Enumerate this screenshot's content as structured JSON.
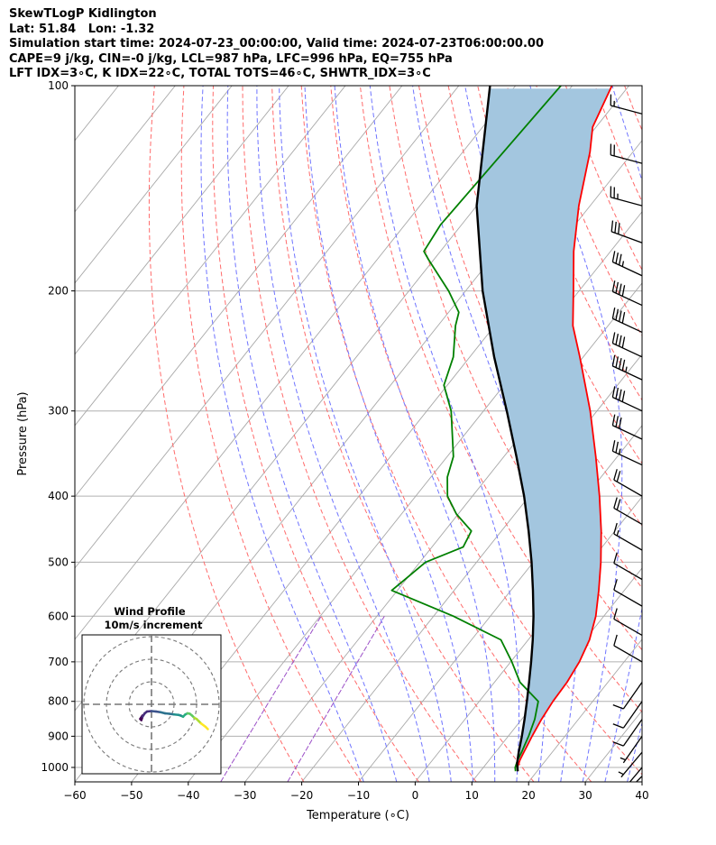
{
  "header": {
    "line1": "SkewTLogP Kidlington",
    "line2": "Lat: 51.84   Lon: -1.32",
    "line3": "Simulation start time: 2024-07-23_00:00:00, Valid time: 2024-07-23T06:00:00.00",
    "line4": "CAPE=9 j/kg, CIN=-0 j/kg, LCL=987 hPa, LFC=996 hPa, EQ=755 hPa",
    "line5": "LFT IDX=3∘C, K IDX=22∘C, TOTAL TOTS=46∘C, SHWTR_IDX=3∘C"
  },
  "chart_data": {
    "type": "skewt-logp",
    "xlabel": "Temperature (∘C)",
    "ylabel": "Pressure (hPa)",
    "xlim": [
      -60,
      40
    ],
    "ylim": [
      1050,
      100
    ],
    "x_ticks": [
      "−60",
      "−50",
      "−40",
      "−30",
      "−20",
      "−10",
      "0",
      "10",
      "20",
      "30",
      "40"
    ],
    "x_tick_values": [
      -60,
      -50,
      -40,
      -30,
      -20,
      -10,
      0,
      10,
      20,
      30,
      40
    ],
    "y_ticks": [
      "100",
      "200",
      "300",
      "400",
      "500",
      "600",
      "700",
      "800",
      "900",
      "1000"
    ],
    "y_tick_values": [
      100,
      200,
      300,
      400,
      500,
      600,
      700,
      800,
      900,
      1000
    ],
    "colors": {
      "temperature": "#ff0000",
      "dewpoint": "#008000",
      "parcel": "#000000",
      "cape_fill": "#a3c6df",
      "dry_adiabats": "#ff6b6b",
      "moist_adiabats": "#6f74ff",
      "mixing_ratio": "#9b4fc7",
      "isotherms": "#a8a8a8"
    },
    "temperature": [
      [
        1013,
        16.6
      ],
      [
        1000,
        16.0
      ],
      [
        975,
        15.4
      ],
      [
        950,
        15.0
      ],
      [
        925,
        14.6
      ],
      [
        900,
        14.2
      ],
      [
        850,
        13.5
      ],
      [
        800,
        13.0
      ],
      [
        750,
        12.8
      ],
      [
        700,
        12.1
      ],
      [
        650,
        10.8
      ],
      [
        600,
        8.6
      ],
      [
        550,
        5.5
      ],
      [
        500,
        1.9
      ],
      [
        450,
        -2.4
      ],
      [
        400,
        -7.6
      ],
      [
        350,
        -13.8
      ],
      [
        300,
        -21.2
      ],
      [
        250,
        -30.6
      ],
      [
        225,
        -36.2
      ],
      [
        200,
        -41.0
      ],
      [
        175,
        -46.5
      ],
      [
        150,
        -52.0
      ],
      [
        125,
        -57.6
      ],
      [
        115,
        -60.6
      ],
      [
        100,
        -63.0
      ]
    ],
    "dewpoint": [
      [
        1013,
        16.2
      ],
      [
        1000,
        15.6
      ],
      [
        975,
        15.0
      ],
      [
        950,
        14.6
      ],
      [
        925,
        14.1
      ],
      [
        900,
        13.6
      ],
      [
        850,
        12.3
      ],
      [
        800,
        10.4
      ],
      [
        750,
        4.5
      ],
      [
        700,
        0.2
      ],
      [
        650,
        -4.8
      ],
      [
        600,
        -16.5
      ],
      [
        550,
        -31.0
      ],
      [
        525,
        -30.0
      ],
      [
        500,
        -29.0
      ],
      [
        475,
        -24.5
      ],
      [
        450,
        -25.3
      ],
      [
        425,
        -30.3
      ],
      [
        400,
        -34.4
      ],
      [
        375,
        -37.1
      ],
      [
        350,
        -38.9
      ],
      [
        300,
        -45.7
      ],
      [
        275,
        -50.6
      ],
      [
        250,
        -52.9
      ],
      [
        225,
        -56.9
      ],
      [
        215,
        -58.2
      ],
      [
        200,
        -63.0
      ],
      [
        180,
        -70.9
      ],
      [
        175,
        -72.9
      ],
      [
        160,
        -73.7
      ],
      [
        100,
        -72.0
      ]
    ],
    "parcel": [
      [
        1013,
        16.6
      ],
      [
        1000,
        16.0
      ],
      [
        987,
        15.4
      ],
      [
        950,
        14.1
      ],
      [
        900,
        12.4
      ],
      [
        850,
        10.5
      ],
      [
        800,
        8.4
      ],
      [
        750,
        6.1
      ],
      [
        700,
        3.6
      ],
      [
        650,
        0.8
      ],
      [
        600,
        -2.4
      ],
      [
        550,
        -6.1
      ],
      [
        500,
        -10.3
      ],
      [
        450,
        -15.2
      ],
      [
        400,
        -20.9
      ],
      [
        350,
        -27.8
      ],
      [
        300,
        -35.9
      ],
      [
        250,
        -45.7
      ],
      [
        200,
        -57.0
      ],
      [
        150,
        -70.0
      ],
      [
        100,
        -84.5
      ]
    ],
    "wind_barbs": {
      "pressures": [
        110,
        130,
        150,
        170,
        190,
        210,
        230,
        250,
        270,
        300,
        330,
        360,
        400,
        440,
        480,
        530,
        580,
        640,
        700,
        750,
        800,
        850,
        900,
        950,
        1000,
        1030
      ],
      "speed_kt": [
        15,
        20,
        25,
        30,
        35,
        40,
        40,
        40,
        45,
        40,
        30,
        25,
        20,
        20,
        15,
        10,
        10,
        10,
        10,
        10,
        10,
        10,
        5,
        5,
        5,
        5
      ],
      "direction_deg": [
        285,
        285,
        285,
        290,
        295,
        295,
        295,
        295,
        295,
        295,
        295,
        295,
        300,
        300,
        300,
        300,
        300,
        300,
        300,
        215,
        215,
        215,
        215,
        220,
        220,
        225
      ]
    },
    "hodograph": {
      "title_line1": "Wind Profile",
      "title_line2": "10m/s increment",
      "rings_ms": [
        10,
        20,
        30
      ],
      "colormap": "viridis",
      "u_ms": [
        -4,
        -5,
        -4.5,
        -4,
        -3,
        -2,
        0,
        2,
        4,
        6,
        8,
        10,
        12,
        13,
        14,
        15,
        16,
        17,
        18,
        19,
        20,
        21,
        22,
        24,
        25
      ],
      "v_ms": [
        -5,
        -6.5,
        -7,
        -5.5,
        -4,
        -3.2,
        -3,
        -3.2,
        -3.5,
        -4,
        -4.2,
        -4.5,
        -4.7,
        -5,
        -5.5,
        -4.5,
        -4,
        -4.2,
        -5,
        -6,
        -6.5,
        -7.5,
        -8.5,
        -10,
        -11
      ]
    }
  }
}
